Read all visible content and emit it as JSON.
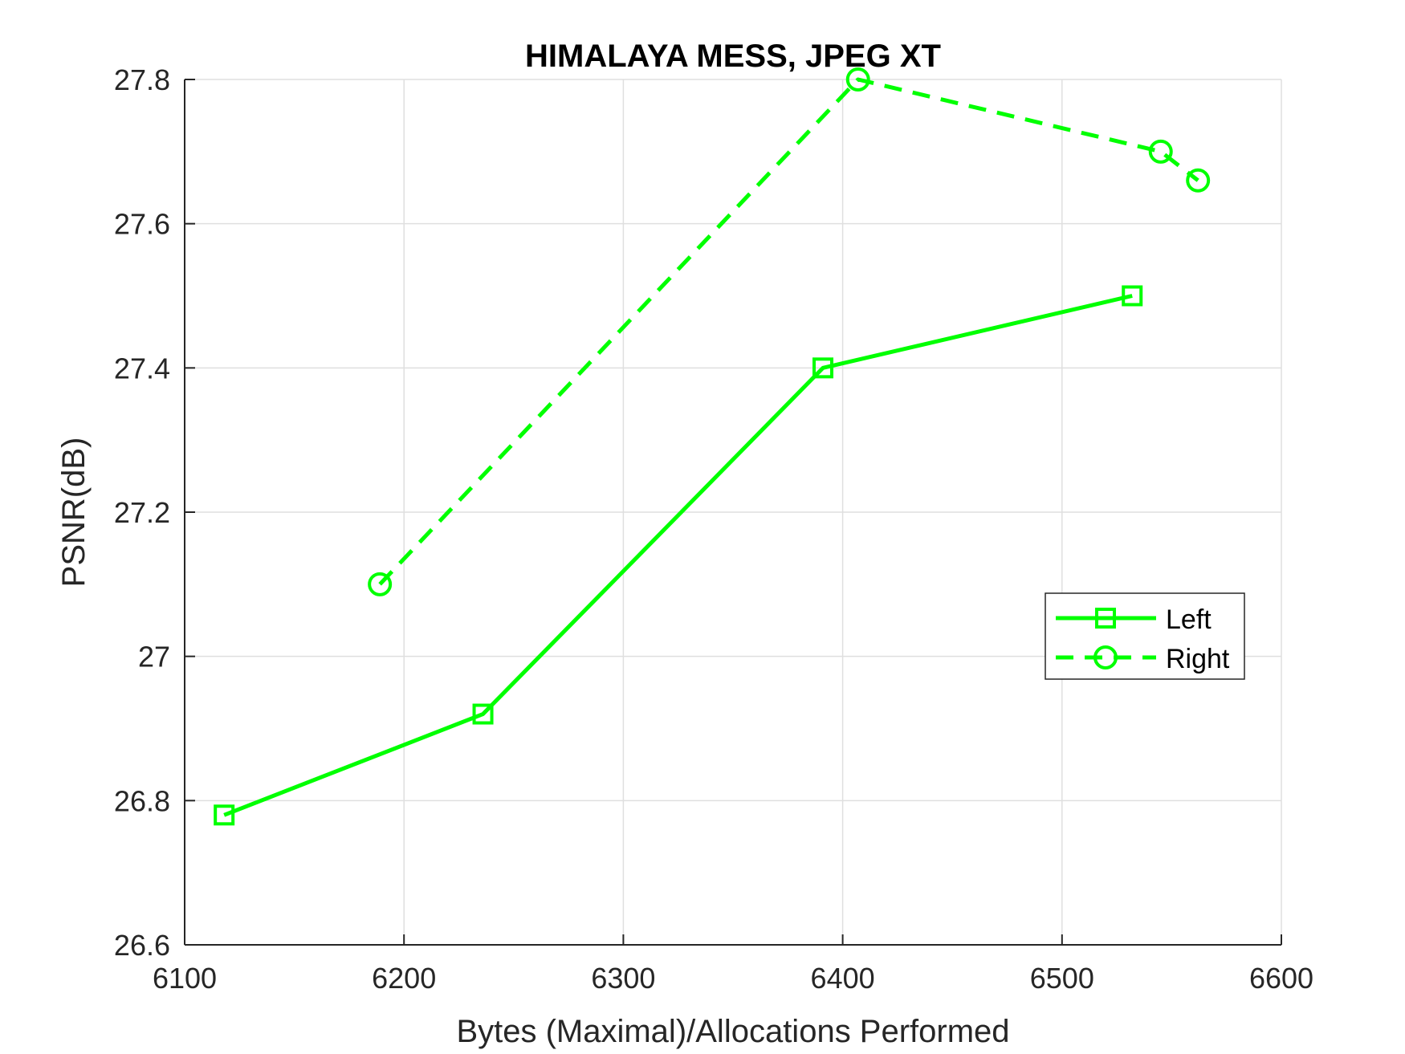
{
  "chart_data": {
    "type": "line",
    "title": "HIMALAYA MESS, JPEG XT",
    "xlabel": "Bytes (Maximal)/Allocations Performed",
    "ylabel": "PSNR(dB)",
    "xlim": [
      6100,
      6600
    ],
    "ylim": [
      26.6,
      27.8
    ],
    "xticks": [
      6100,
      6200,
      6300,
      6400,
      6500,
      6600
    ],
    "yticks": [
      26.6,
      26.8,
      27,
      27.2,
      27.4,
      27.6,
      27.8
    ],
    "xtick_labels": [
      "6100",
      "6200",
      "6300",
      "6400",
      "6500",
      "6600"
    ],
    "ytick_labels": [
      "26.6",
      "26.8",
      "27",
      "27.2",
      "27.4",
      "27.6",
      "27.8"
    ],
    "grid": true,
    "legend_position": "right",
    "series": [
      {
        "name": "Left",
        "color": "#00ff00",
        "line_style": "solid",
        "marker": "square",
        "x": [
          6118,
          6236,
          6391,
          6532
        ],
        "y": [
          26.78,
          26.92,
          27.4,
          27.5
        ]
      },
      {
        "name": "Right",
        "color": "#00ff00",
        "line_style": "dashed",
        "marker": "circle",
        "x": [
          6189,
          6407,
          6545,
          6562
        ],
        "y": [
          27.1,
          27.8,
          27.7,
          27.66
        ]
      }
    ]
  }
}
